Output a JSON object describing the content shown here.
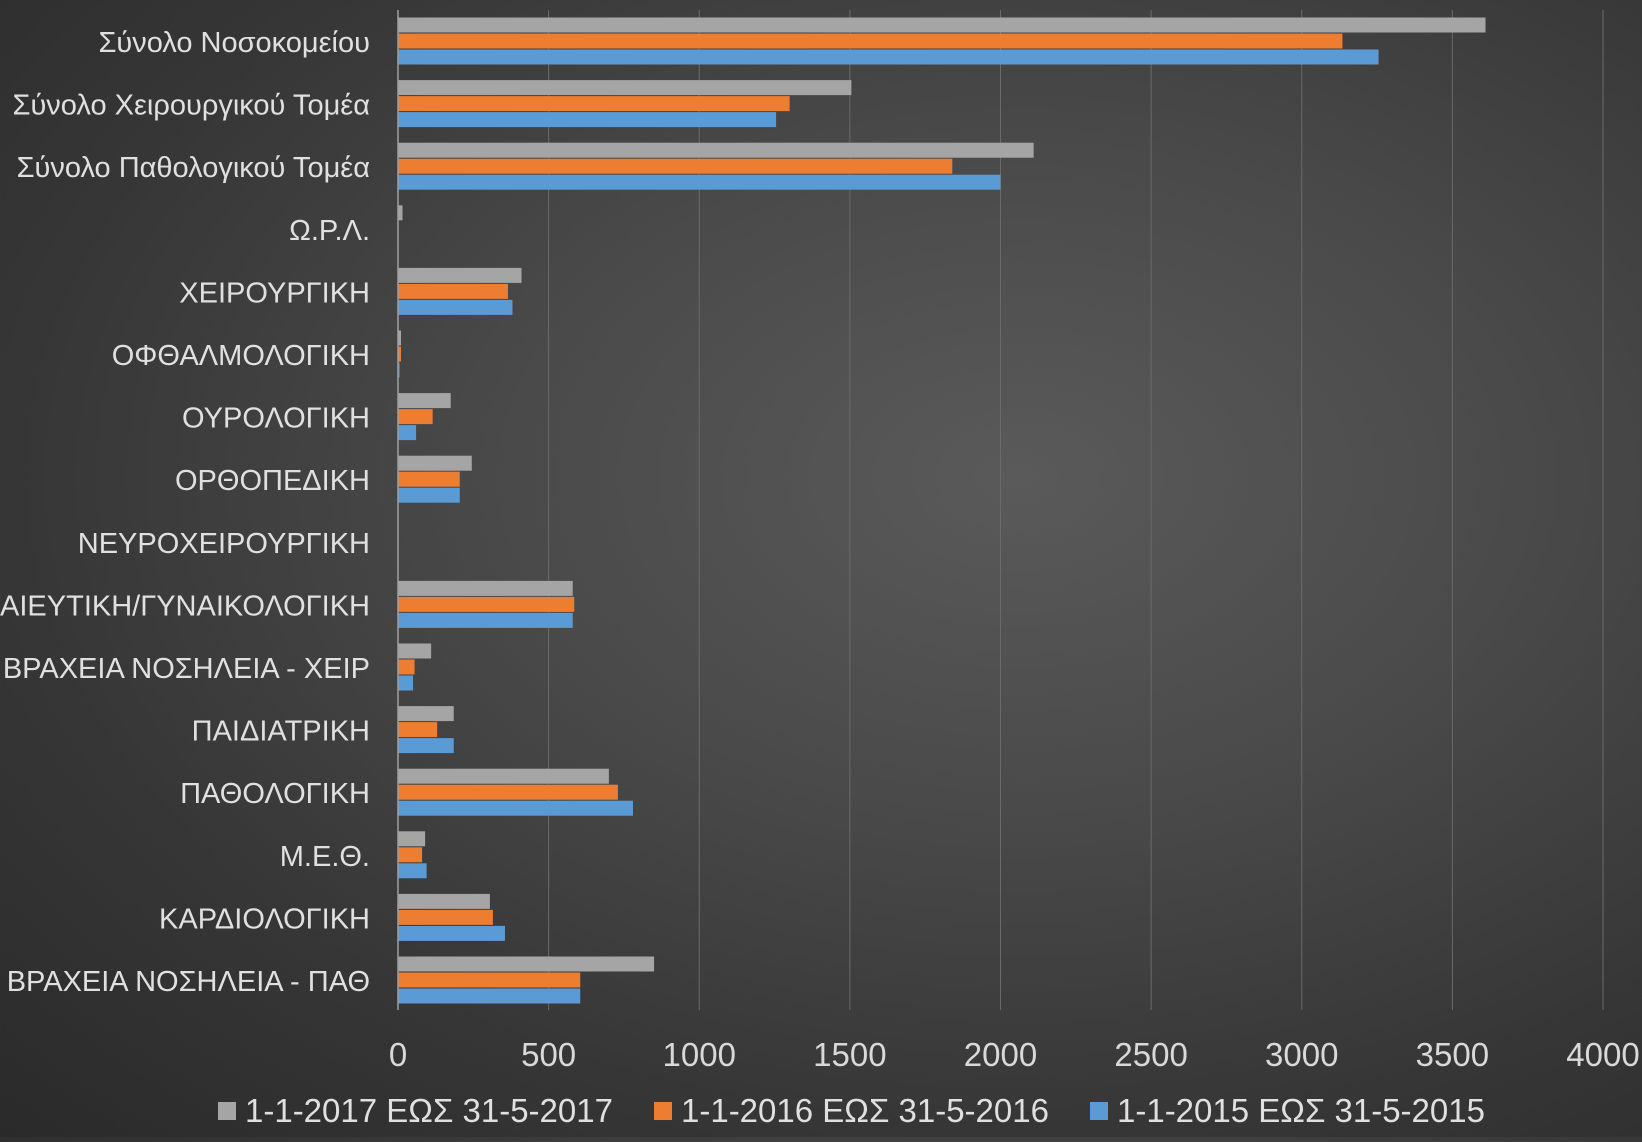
{
  "chart_data": {
    "type": "bar",
    "orientation": "horizontal",
    "categories": [
      "Σύνολο Νοσοκομείου",
      "Σύνολο Χειρουργικού Τομέα",
      "Σύνολο Παθολογικού Τομέα",
      "Ω.Ρ.Λ.",
      "ΧΕΙΡΟΥΡΓΙΚΗ",
      "ΟΦΘΑΛΜΟΛΟΓΙΚΗ",
      "ΟΥΡΟΛΟΓΙΚΗ",
      "ΟΡΘΟΠΕΔΙΚΗ",
      "ΝΕΥΡΟΧΕΙΡΟΥΡΓΙΚΗ",
      "ΜΑΙΕΥΤΙΚΗ/ΓΥΝΑΙΚΟΛΟΓΙΚΗ",
      "ΒΡΑΧΕΙΑ ΝΟΣΗΛΕΙΑ - ΧΕΙΡ",
      "ΠΑΙΔΙΑΤΡΙΚΗ",
      "ΠΑΘΟΛΟΓΙΚΗ",
      "Μ.Ε.Θ.",
      "ΚΑΡΔΙΟΛΟΓΙΚΗ",
      "ΒΡΑΧΕΙΑ ΝΟΣΗΛΕΙΑ - ΠΑΘ"
    ],
    "series": [
      {
        "name": "1-1-2017 ΕΩΣ 31-5-2017",
        "color": "#a5a5a5",
        "values": [
          3610,
          1505,
          2110,
          15,
          410,
          10,
          175,
          245,
          0,
          580,
          110,
          185,
          700,
          90,
          305,
          850
        ]
      },
      {
        "name": "1-1-2016 ΕΩΣ 31-5-2016",
        "color": "#ed7d31",
        "values": [
          3135,
          1300,
          1840,
          0,
          365,
          10,
          115,
          205,
          0,
          585,
          55,
          130,
          730,
          80,
          315,
          605
        ]
      },
      {
        "name": "1-1-2015 ΕΩΣ 31-5-2015",
        "color": "#5b9bd5",
        "values": [
          3255,
          1255,
          2000,
          0,
          380,
          5,
          60,
          205,
          0,
          580,
          50,
          185,
          780,
          95,
          355,
          605
        ]
      }
    ],
    "xlim": [
      0,
      4000
    ],
    "xticks": [
      0,
      500,
      1000,
      1500,
      2000,
      2500,
      3000,
      3500,
      4000
    ],
    "grid": "vertical",
    "legend_position": "bottom",
    "title": "",
    "xlabel": "",
    "ylabel": ""
  }
}
